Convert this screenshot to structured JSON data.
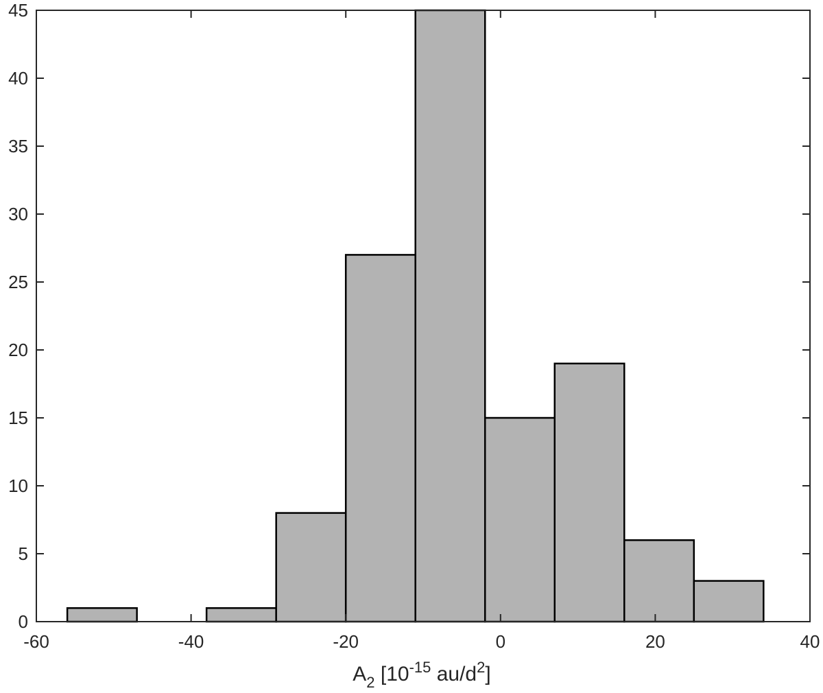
{
  "chart_data": {
    "type": "bar",
    "subtype": "histogram",
    "bins": [
      {
        "x0": -56,
        "x1": -47,
        "count": 1
      },
      {
        "x0": -47,
        "x1": -38,
        "count": 0
      },
      {
        "x0": -38,
        "x1": -29,
        "count": 1
      },
      {
        "x0": -29,
        "x1": -20,
        "count": 8
      },
      {
        "x0": -20,
        "x1": -11,
        "count": 27
      },
      {
        "x0": -11,
        "x1": -2,
        "count": 45
      },
      {
        "x0": -2,
        "x1": 7,
        "count": 15
      },
      {
        "x0": 7,
        "x1": 16,
        "count": 19
      },
      {
        "x0": 16,
        "x1": 25,
        "count": 6
      },
      {
        "x0": 25,
        "x1": 34,
        "count": 3
      }
    ],
    "xlabel": {
      "main": "A",
      "sub": "2",
      "mid": " [10",
      "sup1": "-15",
      "mid2": " au/d",
      "sup2": "2",
      "end": "]"
    },
    "ylabel": "",
    "title": "",
    "xlim": [
      -60,
      40
    ],
    "ylim": [
      0,
      45
    ],
    "xticks": [
      -60,
      -40,
      -20,
      0,
      20,
      40
    ],
    "yticks": [
      0,
      5,
      10,
      15,
      20,
      25,
      30,
      35,
      40,
      45
    ],
    "grid": false,
    "colors": {
      "bar_fill": "#b3b3b3",
      "bar_edge": "#000000",
      "axis": "#262626"
    }
  }
}
